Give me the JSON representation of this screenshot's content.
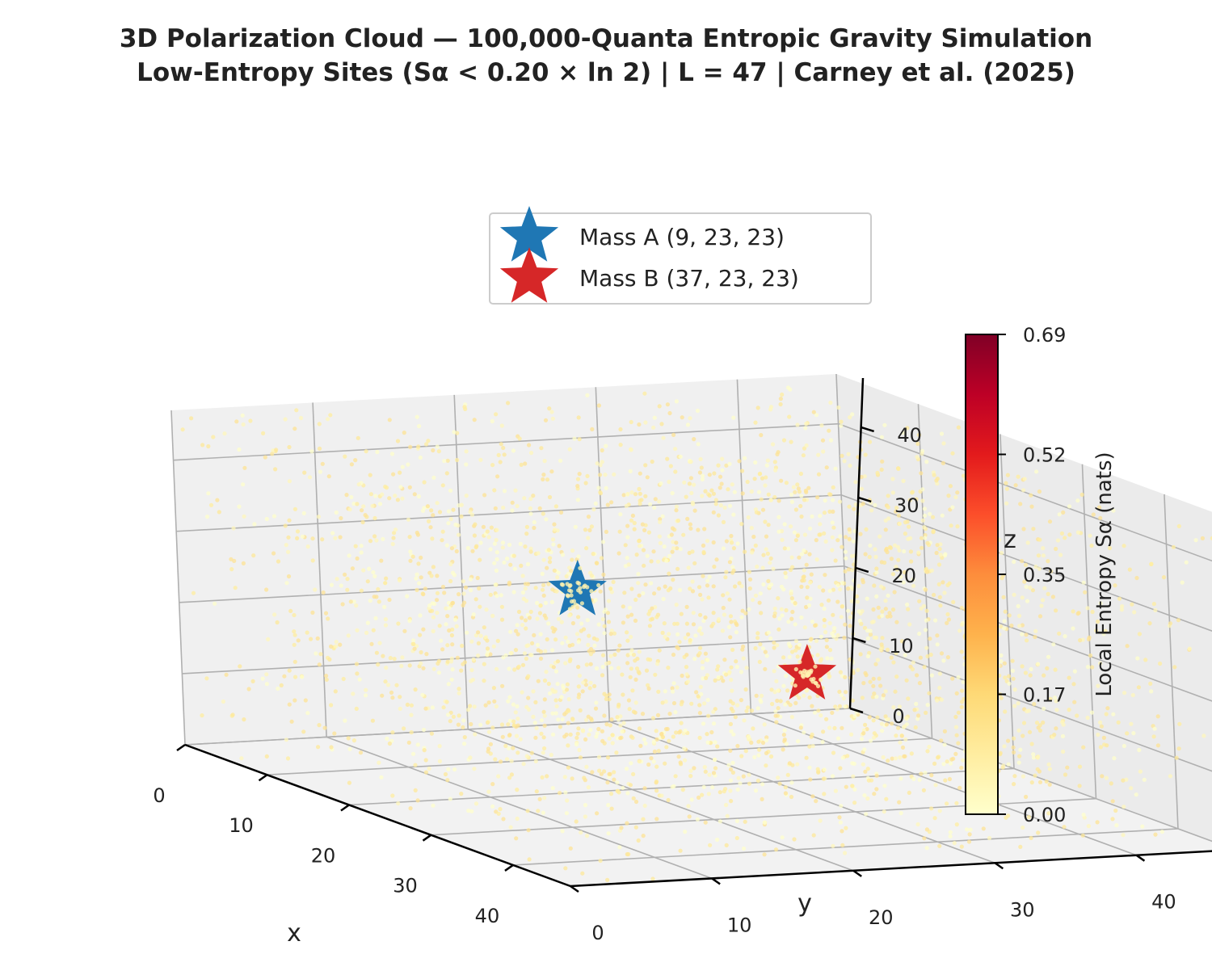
{
  "chart_data": {
    "type": "scatter",
    "projection": "3d",
    "title_line1": "3D Polarization Cloud — 100,000-Quanta Entropic Gravity Simulation",
    "title_line2": "Low-Entropy Sites  (Sα < 0.20 × ln 2)  |  L = 47  |  Carney et al. (2025)",
    "xlabel": "x",
    "ylabel": "y",
    "zlabel": "z",
    "xlim": [
      0,
      47
    ],
    "ylim": [
      0,
      47
    ],
    "zlim": [
      0,
      47
    ],
    "x_ticks": [
      "0",
      "10",
      "20",
      "30",
      "40"
    ],
    "y_ticks": [
      "0",
      "10",
      "20",
      "30",
      "40"
    ],
    "z_ticks": [
      "0",
      "10",
      "20",
      "30",
      "40"
    ],
    "grid": true,
    "legend": {
      "placement": "top-center",
      "entries": [
        {
          "label": "Mass A  (9, 23, 23)",
          "color": "#1f77b4",
          "marker": "star",
          "x": 9,
          "y": 23,
          "z": 23
        },
        {
          "label": "Mass B  (37, 23, 23)",
          "color": "#d62728",
          "marker": "star",
          "x": 37,
          "y": 23,
          "z": 23
        }
      ]
    },
    "colorbar": {
      "label": "Local Entropy  Sα  (nats)",
      "colormap": "YlOrRd",
      "range": [
        0,
        0.69
      ],
      "ticks": [
        "0.00",
        "0.17",
        "0.35",
        "0.52",
        "0.69"
      ],
      "tick_values": [
        0,
        0.1725,
        0.345,
        0.5175,
        0.69
      ]
    },
    "points": {
      "description": "low-entropy sites scattered uniformly through the lattice cube, entropy values roughly 0.00–0.14 nats",
      "entropy_range": [
        0.0,
        0.14
      ],
      "approx_count": 3000
    },
    "colors": {
      "point_low": "#ffffcc",
      "point_high": "#fed976",
      "pane": "#f2f2f2",
      "grid": "#b0b0b0"
    }
  }
}
